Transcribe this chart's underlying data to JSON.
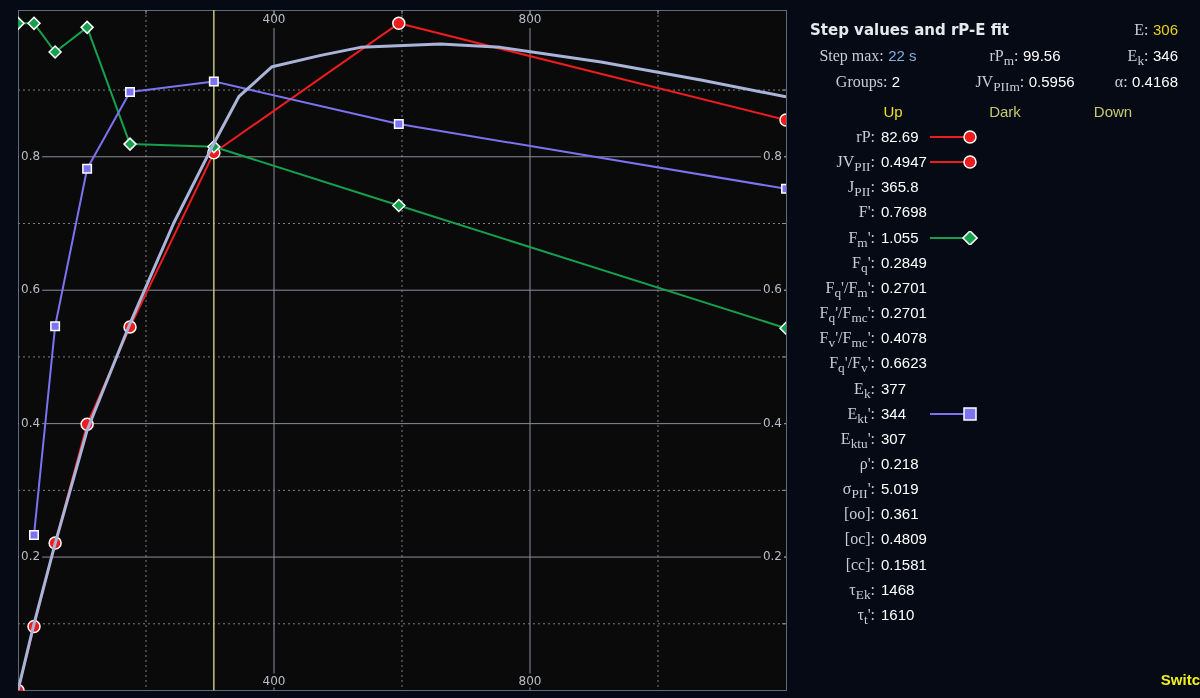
{
  "chart_data": {
    "type": "line",
    "title": "Step values and rP-E fit",
    "xlim": [
      0,
      1200
    ],
    "xticks": [
      {
        "value": 200,
        "label": null
      },
      400,
      {
        "value": 600,
        "label": null
      },
      800,
      {
        "value": 1000,
        "label": null
      }
    ],
    "x2lim": [
      0,
      1200
    ],
    "x2ticks": [
      {
        "value": 200,
        "label": null
      },
      400,
      {
        "value": 600,
        "label": null
      },
      800,
      {
        "value": 1000,
        "label": null
      }
    ],
    "ylim": [
      0,
      1.02
    ],
    "yticks": [
      {
        "value": 0.1,
        "label": null
      },
      0.2,
      {
        "value": 0.3,
        "label": null
      },
      0.4,
      {
        "value": 0.5,
        "label": null
      },
      0.6,
      {
        "value": 0.7,
        "label": null
      },
      0.8,
      {
        "value": 0.9,
        "label": null
      }
    ],
    "y2lim": [
      0,
      1.02
    ],
    "y2ticks": [
      {
        "value": 0.1,
        "label": null
      },
      0.2,
      {
        "value": 0.3,
        "label": null
      },
      0.4,
      {
        "value": 0.5,
        "label": null
      },
      0.6,
      {
        "value": 0.7,
        "label": null
      },
      0.8,
      {
        "value": 0.9,
        "label": null
      }
    ],
    "grid": true,
    "legend": false,
    "series": [
      {
        "color": "#a9b4d8",
        "marker": "none",
        "x": [
          0,
          25,
          58,
          108,
          175,
          243,
          306,
          345,
          397,
          473,
          535,
          660,
          754,
          911,
          1067,
          1200
        ],
        "values": [
          0,
          0.1,
          0.22,
          0.39,
          0.55,
          0.7,
          0.82,
          0.89,
          0.935,
          0.952,
          0.964,
          0.969,
          0.964,
          0.942,
          0.915,
          0.89
        ]
      },
      {
        "color": "#7b73f2",
        "marker": "square",
        "x": [
          25,
          58,
          108,
          175,
          306,
          595,
          1200
        ],
        "values": [
          0.233,
          0.546,
          0.782,
          0.897,
          0.913,
          0.849,
          0.752
        ]
      },
      {
        "color": "#16a04e",
        "marker": "diamond",
        "x": [
          0,
          25,
          58,
          108,
          175,
          306,
          595,
          1200
        ],
        "values": [
          1.0,
          1.0,
          0.957,
          0.994,
          0.819,
          0.815,
          0.727,
          0.543
        ]
      },
      {
        "color": "#ee1c1c",
        "marker": "circle",
        "x": [
          0,
          25,
          58,
          108,
          175,
          306,
          595,
          1200
        ],
        "values": [
          0,
          0.096,
          0.221,
          0.399,
          0.545,
          0.806,
          1.0,
          0.855
        ]
      }
    ],
    "ref_lines": [
      {
        "axis": "x",
        "value": 306,
        "color": "#c9c27a"
      }
    ],
    "annotations": [
      "E: 306",
      "Step max: 22 s",
      "rP$_{m}$: 99.56",
      "E$_{k}$: 346",
      "Groups: 2",
      "JV$_{PIIm}$: 0.5956",
      "α: 0.4168",
      "Up",
      "Dark",
      "Down",
      "rP: 82.69",
      "JV$_{PII}$: 0.4947",
      "J$_{PII}$: 365.8",
      "F': 0.7698",
      "F$_{m}$': 1.055",
      "F$_{q}$': 0.2849",
      "F$_{q}$'/F$_{m}$': 0.2701",
      "F$_{q}$'/F$_{mc}$': 0.2701",
      "F$_{v}$'/F$_{mc}$': 0.4078",
      "F$_{q}$'/F$_{v}$': 0.6623",
      "E$_{k}$: 377",
      "E$_{kt}$': 344",
      "E$_{ktu}$': 307",
      "ρ': 0.218",
      "σ$_{PII}$': 5.019",
      "[oo]: 0.361",
      "[oc]: 0.4809",
      "[cc]: 0.1581",
      "τ$_{Ek}$: 1468",
      "τ$_{t}$': 1610",
      "Switc"
    ]
  }
}
